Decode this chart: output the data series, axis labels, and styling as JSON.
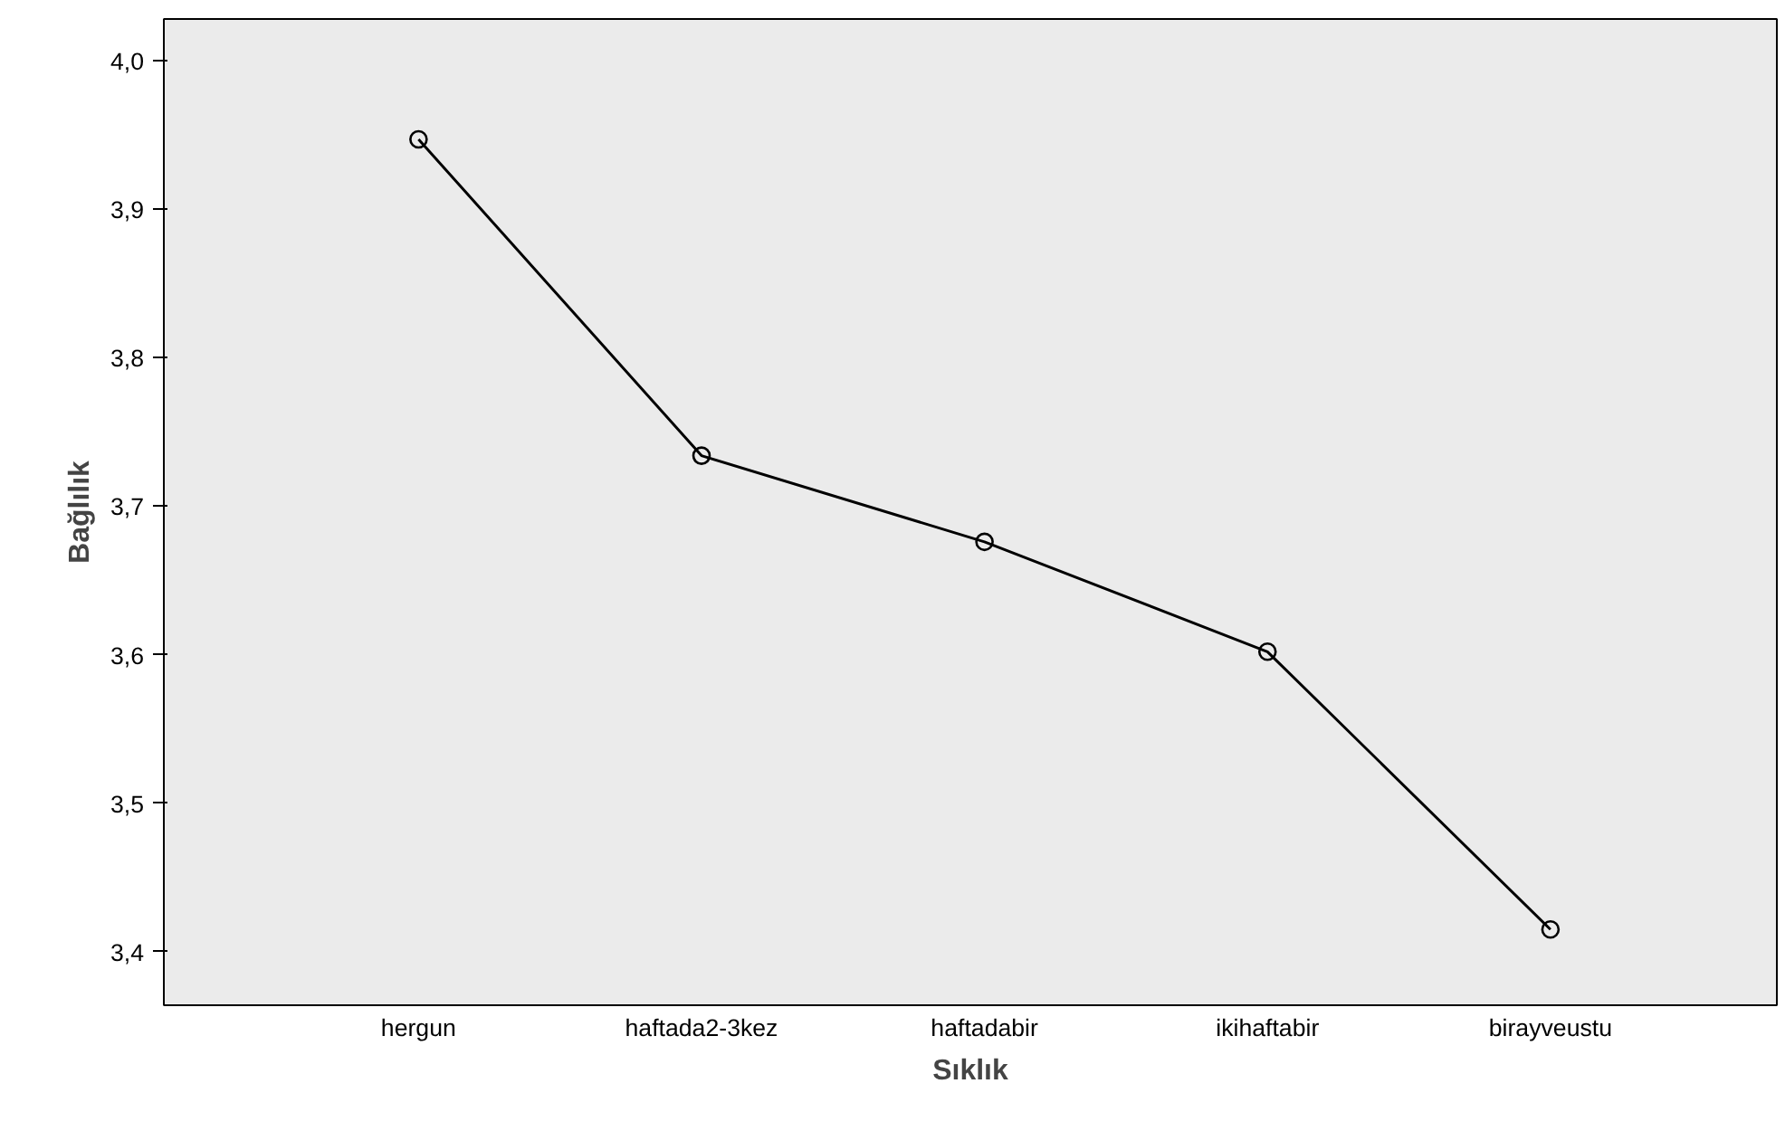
{
  "chart_data": {
    "type": "line",
    "xlabel": "Sıklık",
    "ylabel": "Bağlılık",
    "categories": [
      "hergun",
      "haftada2-3kez",
      "haftadabir",
      "ikihaftabir",
      "birayveustu"
    ],
    "series": [
      {
        "color": "#000000",
        "values": [
          3.947,
          3.734,
          3.676,
          3.602,
          3.415
        ]
      }
    ],
    "ylim": [
      3.364,
      4.028
    ],
    "yticks": [
      {
        "value": 3.4,
        "label": "3,4"
      },
      {
        "value": 3.5,
        "label": "3,5"
      },
      {
        "value": 3.6,
        "label": "3,6"
      },
      {
        "value": 3.7,
        "label": "3,7"
      },
      {
        "value": 3.8,
        "label": "3,8"
      },
      {
        "value": 3.9,
        "label": "3,9"
      },
      {
        "value": 4.0,
        "label": "4,0"
      }
    ],
    "marker": "circle",
    "line_style": "solid"
  }
}
